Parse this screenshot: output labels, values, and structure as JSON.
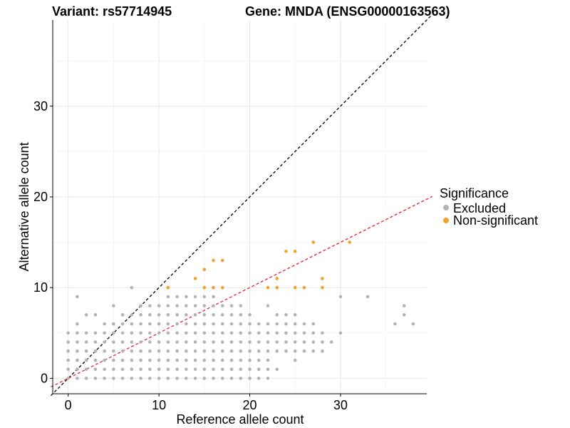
{
  "title": {
    "variant": "Variant: rs57714945",
    "gene": "Gene: MNDA (ENSG00000163563)"
  },
  "chart_data": {
    "type": "scatter",
    "xlabel": "Reference allele count",
    "ylabel": "Alternative allele count",
    "xlim": [
      -1.7,
      39.5
    ],
    "ylim": [
      -1.7,
      39.5
    ],
    "x_ticks": [
      0,
      10,
      20,
      30
    ],
    "y_ticks": [
      0,
      10,
      20,
      30
    ],
    "grid": true,
    "legend": {
      "title": "Significance",
      "position": "right",
      "entries": [
        {
          "label": "Excluded",
          "color": "#b3b3b3"
        },
        {
          "label": "Non-significant",
          "color": "#f5a02a"
        }
      ]
    },
    "reference_lines": [
      {
        "name": "y = x",
        "slope": 1,
        "intercept": 0,
        "color": "#000000",
        "style": "dashed"
      },
      {
        "name": "fitted ratio",
        "slope": 0.5,
        "intercept": 0,
        "color": "#e8232a",
        "style": "dashed"
      }
    ],
    "series": [
      {
        "name": "Excluded",
        "color": "#b3b3b3",
        "points": [
          [
            0,
            0
          ],
          [
            0,
            1
          ],
          [
            0,
            2
          ],
          [
            0,
            3
          ],
          [
            0,
            4
          ],
          [
            0,
            5
          ],
          [
            1,
            0
          ],
          [
            1,
            1
          ],
          [
            1,
            2
          ],
          [
            1,
            3
          ],
          [
            1,
            4
          ],
          [
            1,
            5
          ],
          [
            1,
            6
          ],
          [
            1,
            9
          ],
          [
            2,
            0
          ],
          [
            2,
            1
          ],
          [
            2,
            2
          ],
          [
            2,
            3
          ],
          [
            2,
            4
          ],
          [
            2,
            5
          ],
          [
            2,
            7
          ],
          [
            3,
            0
          ],
          [
            3,
            1
          ],
          [
            3,
            2
          ],
          [
            3,
            3
          ],
          [
            3,
            4
          ],
          [
            3,
            5
          ],
          [
            3,
            7
          ],
          [
            4,
            0
          ],
          [
            4,
            1
          ],
          [
            4,
            2
          ],
          [
            4,
            3
          ],
          [
            4,
            4
          ],
          [
            4,
            5
          ],
          [
            4,
            6
          ],
          [
            5,
            0
          ],
          [
            5,
            1
          ],
          [
            5,
            2
          ],
          [
            5,
            3
          ],
          [
            5,
            4
          ],
          [
            5,
            5
          ],
          [
            5,
            6
          ],
          [
            5,
            8
          ],
          [
            6,
            0
          ],
          [
            6,
            1
          ],
          [
            6,
            2
          ],
          [
            6,
            3
          ],
          [
            6,
            4
          ],
          [
            6,
            5
          ],
          [
            6,
            6
          ],
          [
            6,
            7
          ],
          [
            7,
            0
          ],
          [
            7,
            1
          ],
          [
            7,
            2
          ],
          [
            7,
            3
          ],
          [
            7,
            4
          ],
          [
            7,
            5
          ],
          [
            7,
            6
          ],
          [
            7,
            7
          ],
          [
            7,
            10
          ],
          [
            8,
            0
          ],
          [
            8,
            1
          ],
          [
            8,
            2
          ],
          [
            8,
            3
          ],
          [
            8,
            4
          ],
          [
            8,
            5
          ],
          [
            8,
            6
          ],
          [
            8,
            7
          ],
          [
            8,
            8
          ],
          [
            9,
            0
          ],
          [
            9,
            1
          ],
          [
            9,
            2
          ],
          [
            9,
            3
          ],
          [
            9,
            4
          ],
          [
            9,
            5
          ],
          [
            9,
            6
          ],
          [
            9,
            7
          ],
          [
            9,
            8
          ],
          [
            10,
            0
          ],
          [
            10,
            1
          ],
          [
            10,
            2
          ],
          [
            10,
            3
          ],
          [
            10,
            4
          ],
          [
            10,
            5
          ],
          [
            10,
            6
          ],
          [
            10,
            7
          ],
          [
            10,
            8
          ],
          [
            11,
            0
          ],
          [
            11,
            1
          ],
          [
            11,
            2
          ],
          [
            11,
            3
          ],
          [
            11,
            4
          ],
          [
            11,
            5
          ],
          [
            11,
            6
          ],
          [
            11,
            7
          ],
          [
            11,
            8
          ],
          [
            11,
            9
          ],
          [
            12,
            0
          ],
          [
            12,
            1
          ],
          [
            12,
            2
          ],
          [
            12,
            3
          ],
          [
            12,
            4
          ],
          [
            12,
            5
          ],
          [
            12,
            6
          ],
          [
            12,
            7
          ],
          [
            12,
            8
          ],
          [
            12,
            9
          ],
          [
            13,
            0
          ],
          [
            13,
            1
          ],
          [
            13,
            2
          ],
          [
            13,
            3
          ],
          [
            13,
            4
          ],
          [
            13,
            5
          ],
          [
            13,
            6
          ],
          [
            13,
            7
          ],
          [
            13,
            8
          ],
          [
            13,
            9
          ],
          [
            14,
            0
          ],
          [
            14,
            1
          ],
          [
            14,
            2
          ],
          [
            14,
            3
          ],
          [
            14,
            4
          ],
          [
            14,
            5
          ],
          [
            14,
            6
          ],
          [
            14,
            7
          ],
          [
            14,
            8
          ],
          [
            14,
            9
          ],
          [
            15,
            0
          ],
          [
            15,
            1
          ],
          [
            15,
            2
          ],
          [
            15,
            3
          ],
          [
            15,
            4
          ],
          [
            15,
            5
          ],
          [
            15,
            6
          ],
          [
            15,
            7
          ],
          [
            15,
            8
          ],
          [
            15,
            9
          ],
          [
            16,
            0
          ],
          [
            16,
            1
          ],
          [
            16,
            2
          ],
          [
            16,
            3
          ],
          [
            16,
            4
          ],
          [
            16,
            5
          ],
          [
            16,
            6
          ],
          [
            16,
            7
          ],
          [
            16,
            8
          ],
          [
            16,
            9
          ],
          [
            17,
            0
          ],
          [
            17,
            1
          ],
          [
            17,
            2
          ],
          [
            17,
            3
          ],
          [
            17,
            4
          ],
          [
            17,
            5
          ],
          [
            17,
            6
          ],
          [
            17,
            7
          ],
          [
            17,
            8
          ],
          [
            18,
            0
          ],
          [
            18,
            1
          ],
          [
            18,
            2
          ],
          [
            18,
            3
          ],
          [
            18,
            4
          ],
          [
            18,
            5
          ],
          [
            18,
            6
          ],
          [
            18,
            7
          ],
          [
            18,
            8
          ],
          [
            19,
            0
          ],
          [
            19,
            1
          ],
          [
            19,
            2
          ],
          [
            19,
            3
          ],
          [
            19,
            4
          ],
          [
            19,
            5
          ],
          [
            19,
            6
          ],
          [
            19,
            7
          ],
          [
            19,
            8
          ],
          [
            20,
            0
          ],
          [
            20,
            1
          ],
          [
            20,
            2
          ],
          [
            20,
            3
          ],
          [
            20,
            4
          ],
          [
            20,
            5
          ],
          [
            20,
            6
          ],
          [
            20,
            7
          ],
          [
            21,
            0
          ],
          [
            21,
            1
          ],
          [
            21,
            2
          ],
          [
            21,
            3
          ],
          [
            21,
            4
          ],
          [
            21,
            5
          ],
          [
            21,
            6
          ],
          [
            22,
            0
          ],
          [
            22,
            1
          ],
          [
            22,
            2
          ],
          [
            22,
            3
          ],
          [
            22,
            4
          ],
          [
            22,
            5
          ],
          [
            22,
            6
          ],
          [
            22,
            8
          ],
          [
            23,
            1
          ],
          [
            23,
            3
          ],
          [
            23,
            4
          ],
          [
            23,
            5
          ],
          [
            23,
            6
          ],
          [
            23,
            7
          ],
          [
            24,
            3
          ],
          [
            24,
            4
          ],
          [
            24,
            5
          ],
          [
            24,
            6
          ],
          [
            24,
            7
          ],
          [
            25,
            2
          ],
          [
            25,
            3
          ],
          [
            25,
            4
          ],
          [
            25,
            5
          ],
          [
            25,
            6
          ],
          [
            25,
            7
          ],
          [
            26,
            3
          ],
          [
            26,
            4
          ],
          [
            26,
            5
          ],
          [
            26,
            6
          ],
          [
            27,
            3
          ],
          [
            27,
            4
          ],
          [
            27,
            5
          ],
          [
            27,
            6
          ],
          [
            28,
            3
          ],
          [
            28,
            4
          ],
          [
            28,
            5
          ],
          [
            29,
            4
          ],
          [
            30,
            5
          ],
          [
            30,
            9
          ],
          [
            33,
            9
          ],
          [
            36,
            6
          ],
          [
            37,
            7
          ],
          [
            37,
            8
          ],
          [
            38,
            6
          ]
        ]
      },
      {
        "name": "Non-significant",
        "color": "#f5a02a",
        "points": [
          [
            11,
            10
          ],
          [
            14,
            11
          ],
          [
            15,
            10
          ],
          [
            15,
            12
          ],
          [
            16,
            10
          ],
          [
            16,
            13
          ],
          [
            17,
            10
          ],
          [
            17,
            13
          ],
          [
            22,
            10
          ],
          [
            23,
            10
          ],
          [
            23,
            11
          ],
          [
            24,
            14
          ],
          [
            25,
            10
          ],
          [
            25,
            14
          ],
          [
            26,
            10
          ],
          [
            27,
            15
          ],
          [
            28,
            10
          ],
          [
            28,
            11
          ],
          [
            31,
            15
          ]
        ]
      }
    ]
  }
}
